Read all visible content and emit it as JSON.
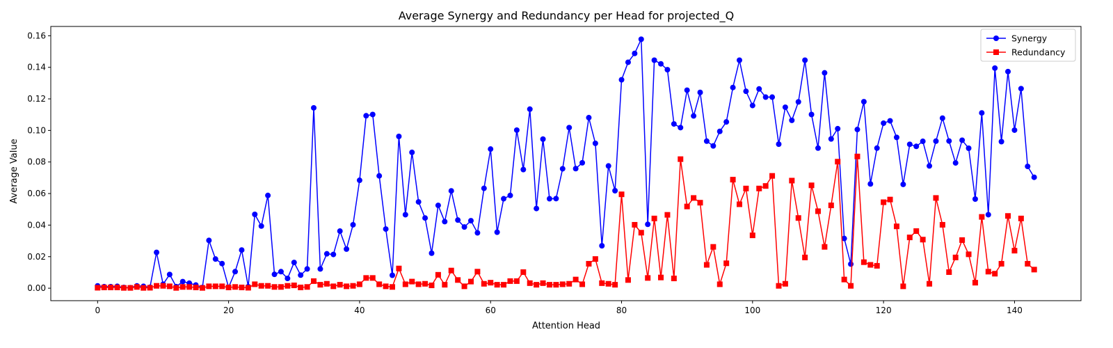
{
  "chart_data": {
    "type": "line",
    "title": "Average Synergy and Redundancy per Head for projected_Q",
    "xlabel": "Attention Head",
    "ylabel": "Average Value",
    "xlim": [
      -7.15,
      150.15
    ],
    "ylim": [
      -0.0079,
      0.1659
    ],
    "xticks": [
      0,
      20,
      40,
      60,
      80,
      100,
      120,
      140
    ],
    "yticks": [
      0.0,
      0.02,
      0.04,
      0.06,
      0.08,
      0.1,
      0.12,
      0.14,
      0.16
    ],
    "xtick_labels": [
      "0",
      "20",
      "40",
      "60",
      "80",
      "100",
      "120",
      "140"
    ],
    "ytick_labels": [
      "0.00",
      "0.02",
      "0.04",
      "0.06",
      "0.08",
      "0.10",
      "0.12",
      "0.14",
      "0.16"
    ],
    "grid": false,
    "legend_position": "upper right",
    "series": [
      {
        "name": "Synergy",
        "color": "#0000ff",
        "marker": "circle",
        "values": [
          0.0015,
          0.001,
          0.001,
          0.0012,
          0.0005,
          0.0003,
          0.0015,
          0.0012,
          0.0006,
          0.0227,
          0.0025,
          0.0087,
          0.001,
          0.0042,
          0.0032,
          0.002,
          0.0005,
          0.0303,
          0.0185,
          0.0156,
          0.0005,
          0.0105,
          0.0242,
          0.001,
          0.0468,
          0.0394,
          0.0588,
          0.0088,
          0.0105,
          0.0062,
          0.0163,
          0.0083,
          0.0122,
          0.1143,
          0.0122,
          0.0218,
          0.0214,
          0.0362,
          0.0248,
          0.0402,
          0.0684,
          0.1093,
          0.1101,
          0.0712,
          0.0375,
          0.0082,
          0.0962,
          0.0466,
          0.0861,
          0.0547,
          0.0445,
          0.0222,
          0.0525,
          0.0422,
          0.0617,
          0.0432,
          0.0388,
          0.0428,
          0.0351,
          0.0633,
          0.0882,
          0.0355,
          0.0567,
          0.0588,
          0.1002,
          0.0752,
          0.1135,
          0.0505,
          0.0945,
          0.0567,
          0.0568,
          0.0757,
          0.1018,
          0.0758,
          0.0795,
          0.1081,
          0.0918,
          0.0269,
          0.0775,
          0.0618,
          0.1321,
          0.1432,
          0.1488,
          0.1578,
          0.0405,
          0.1445,
          0.1422,
          0.1385,
          0.1041,
          0.1018,
          0.1255,
          0.1092,
          0.1241,
          0.0932,
          0.0902,
          0.0994,
          0.1054,
          0.1272,
          0.1445,
          0.1248,
          0.1158,
          0.1263,
          0.1211,
          0.1211,
          0.0913,
          0.1147,
          0.1064,
          0.1181,
          0.1445,
          0.1101,
          0.0888,
          0.1365,
          0.0946,
          0.1011,
          0.0315,
          0.0153,
          0.1006,
          0.1182,
          0.0661,
          0.0888,
          0.1046,
          0.1061,
          0.0956,
          0.0658,
          0.0912,
          0.0899,
          0.0931,
          0.0775,
          0.0932,
          0.1078,
          0.0933,
          0.0794,
          0.0938,
          0.0887,
          0.0565,
          0.1111,
          0.0466,
          0.1395,
          0.0929,
          0.1373,
          0.1002,
          0.1265,
          0.0772,
          0.0703
        ]
      },
      {
        "name": "Redundancy",
        "color": "#ff0000",
        "marker": "square",
        "values": [
          0.0003,
          0.0005,
          0.0005,
          0.0005,
          0.0002,
          0.0002,
          0.0008,
          0.0002,
          0.0003,
          0.0015,
          0.0015,
          0.0012,
          0.0002,
          0.0008,
          0.0008,
          0.0005,
          0.0002,
          0.0012,
          0.0012,
          0.0012,
          0.0005,
          0.0008,
          0.0005,
          0.0003,
          0.0025,
          0.0015,
          0.0015,
          0.0008,
          0.0008,
          0.0015,
          0.0018,
          0.0005,
          0.0008,
          0.0045,
          0.0022,
          0.0028,
          0.0012,
          0.0022,
          0.0012,
          0.0015,
          0.0025,
          0.0065,
          0.0065,
          0.0025,
          0.0012,
          0.0008,
          0.0125,
          0.0025,
          0.0042,
          0.0025,
          0.0028,
          0.0018,
          0.0085,
          0.0022,
          0.0112,
          0.0052,
          0.0012,
          0.0042,
          0.0105,
          0.0028,
          0.0035,
          0.0022,
          0.0022,
          0.0045,
          0.0045,
          0.0102,
          0.0032,
          0.0022,
          0.0032,
          0.0022,
          0.0022,
          0.0025,
          0.0028,
          0.0055,
          0.0025,
          0.0155,
          0.0185,
          0.0032,
          0.0028,
          0.0022,
          0.0595,
          0.0052,
          0.0402,
          0.0352,
          0.0065,
          0.0442,
          0.0068,
          0.0465,
          0.0062,
          0.0818,
          0.0518,
          0.0572,
          0.0542,
          0.0148,
          0.0262,
          0.0025,
          0.0158,
          0.0688,
          0.0532,
          0.0632,
          0.0335,
          0.0632,
          0.0648,
          0.0712,
          0.0015,
          0.0028,
          0.0682,
          0.0445,
          0.0195,
          0.0652,
          0.0488,
          0.0262,
          0.0525,
          0.0802,
          0.0055,
          0.0015,
          0.0835,
          0.0165,
          0.0148,
          0.0142,
          0.0545,
          0.0562,
          0.0392,
          0.0012,
          0.0322,
          0.0362,
          0.0308,
          0.0028,
          0.0572,
          0.0402,
          0.0102,
          0.0195,
          0.0305,
          0.0215,
          0.0035,
          0.0452,
          0.0105,
          0.0092,
          0.0155,
          0.0458,
          0.0238,
          0.0442,
          0.0155,
          0.0118
        ]
      }
    ]
  }
}
